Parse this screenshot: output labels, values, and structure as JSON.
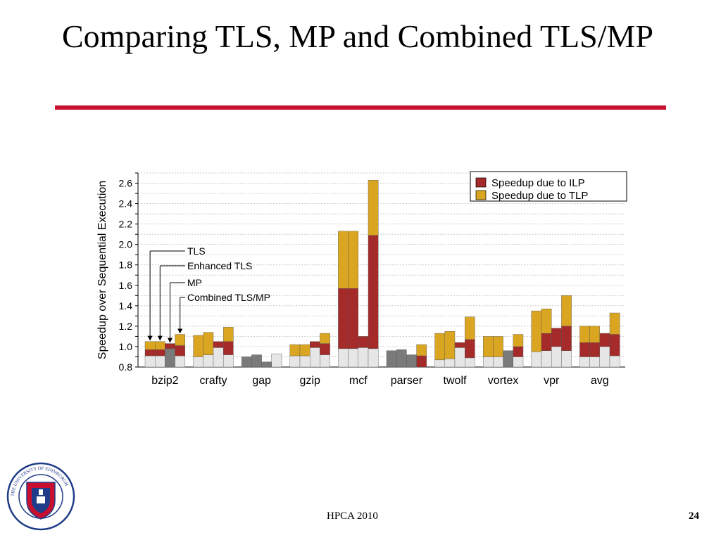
{
  "slide": {
    "title": "Comparing TLS, MP and Combined TLS/MP",
    "footer": "HPCA 2010",
    "page_number": "24",
    "accent_color": "#c8102e"
  },
  "logo": {
    "text": "THE UNIVERSITY OF EDINBURGH"
  },
  "chart_data": {
    "type": "bar",
    "stacked": true,
    "ylabel": "Speedup over Sequential Execution",
    "xlabel": "",
    "ylim": [
      0.8,
      2.7
    ],
    "yticks": [
      "0.8",
      "1.0",
      "1.2",
      "1.4",
      "1.6",
      "1.8",
      "2.0",
      "2.2",
      "2.4",
      "2.6"
    ],
    "grid": true,
    "legend_position": "top-right",
    "legend": [
      {
        "label": "Speedup due to ILP",
        "color": "#a52a2a"
      },
      {
        "label": "Speedup due to TLP",
        "color": "#daa520"
      }
    ],
    "configurations": [
      "TLS",
      "Enhanced TLS",
      "MP",
      "Combined TLS/MP"
    ],
    "categories": [
      "bzip2",
      "crafty",
      "gap",
      "gzip",
      "mcf",
      "parser",
      "twolf",
      "vortex",
      "vpr",
      "avg"
    ],
    "bars": [
      [
        {
          "base": 0.91,
          "ilp": 0.97,
          "total": 1.05
        },
        {
          "base": 0.91,
          "ilp": 0.97,
          "total": 1.05
        },
        {
          "base": 0.98,
          "ilp": 1.03,
          "total": 1.03
        },
        {
          "base": 0.91,
          "ilp": 1.01,
          "total": 1.12
        }
      ],
      [
        {
          "base": 0.9,
          "ilp": 0.9,
          "total": 1.11
        },
        {
          "base": 0.92,
          "ilp": 0.92,
          "total": 1.14
        },
        {
          "base": 0.99,
          "ilp": 1.05,
          "total": 1.05
        },
        {
          "base": 0.92,
          "ilp": 1.05,
          "total": 1.19
        }
      ],
      [
        {
          "base": 0.9,
          "ilp": 0.9,
          "total": 0.9
        },
        {
          "base": 0.92,
          "ilp": 0.92,
          "total": 0.92
        },
        {
          "base": 0.85,
          "ilp": 0.85,
          "total": 0.85
        },
        {
          "base": 0.93,
          "ilp": 0.93,
          "total": 0.93
        }
      ],
      [
        {
          "base": 0.91,
          "ilp": 0.91,
          "total": 1.02
        },
        {
          "base": 0.91,
          "ilp": 0.91,
          "total": 1.02
        },
        {
          "base": 0.99,
          "ilp": 1.05,
          "total": 1.05
        },
        {
          "base": 0.92,
          "ilp": 1.03,
          "total": 1.13
        }
      ],
      [
        {
          "base": 0.98,
          "ilp": 1.57,
          "total": 2.13
        },
        {
          "base": 0.98,
          "ilp": 1.57,
          "total": 2.13
        },
        {
          "base": 0.99,
          "ilp": 1.1,
          "total": 1.1
        },
        {
          "base": 0.98,
          "ilp": 2.09,
          "total": 2.63
        }
      ],
      [
        {
          "base": 0.96,
          "ilp": 0.96,
          "total": 0.96
        },
        {
          "base": 0.97,
          "ilp": 0.97,
          "total": 0.97
        },
        {
          "base": 0.92,
          "ilp": 0.92,
          "total": 0.92
        },
        {
          "base": 0.8,
          "ilp": 0.91,
          "total": 1.02
        }
      ],
      [
        {
          "base": 0.87,
          "ilp": 0.87,
          "total": 1.13
        },
        {
          "base": 0.88,
          "ilp": 0.88,
          "total": 1.15
        },
        {
          "base": 0.99,
          "ilp": 1.04,
          "total": 1.04
        },
        {
          "base": 0.89,
          "ilp": 1.07,
          "total": 1.29
        }
      ],
      [
        {
          "base": 0.9,
          "ilp": 0.9,
          "total": 1.1
        },
        {
          "base": 0.9,
          "ilp": 0.9,
          "total": 1.1
        },
        {
          "base": 0.96,
          "ilp": 0.96,
          "total": 0.96
        },
        {
          "base": 0.9,
          "ilp": 1.0,
          "total": 1.12
        }
      ],
      [
        {
          "base": 0.95,
          "ilp": 0.95,
          "total": 1.35
        },
        {
          "base": 0.96,
          "ilp": 1.13,
          "total": 1.37
        },
        {
          "base": 1.0,
          "ilp": 1.18,
          "total": 1.18
        },
        {
          "base": 0.96,
          "ilp": 1.2,
          "total": 1.5
        }
      ],
      [
        {
          "base": 0.9,
          "ilp": 1.04,
          "total": 1.2
        },
        {
          "base": 0.9,
          "ilp": 1.04,
          "total": 1.2
        },
        {
          "base": 1.0,
          "ilp": 1.13,
          "total": 1.13
        },
        {
          "base": 0.91,
          "ilp": 1.12,
          "total": 1.33
        }
      ]
    ]
  }
}
